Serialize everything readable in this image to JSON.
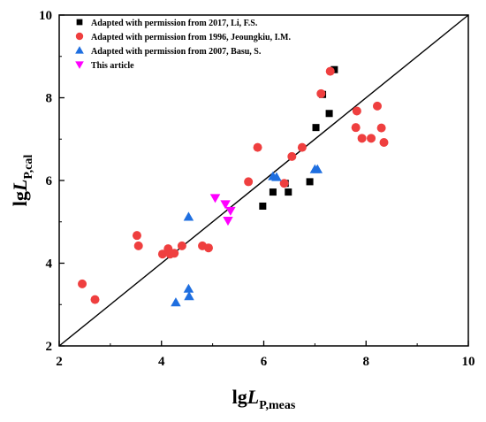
{
  "chart_data": {
    "type": "scatter",
    "title": "",
    "xlabel": {
      "prefix": "lg",
      "main": "L",
      "sub": "P,meas"
    },
    "ylabel": {
      "prefix": "lg",
      "main": "L",
      "sub": "P,cal"
    },
    "xlim": [
      2,
      10
    ],
    "ylim": [
      2,
      10
    ],
    "xticks": [
      "2",
      "4",
      "6",
      "8",
      "10"
    ],
    "yticks": [
      "2",
      "4",
      "6",
      "8",
      "10"
    ],
    "grid": false,
    "legend_position": "top-left",
    "reference_line": {
      "from": [
        2,
        2
      ],
      "to": [
        10,
        10
      ],
      "color": "#000000"
    },
    "series": [
      {
        "name": "Adapted with permission from  2017, Li, F.S.",
        "marker": "square",
        "color": "#000000",
        "points": [
          [
            5.98,
            5.38
          ],
          [
            6.18,
            5.72
          ],
          [
            6.42,
            5.93
          ],
          [
            6.48,
            5.72
          ],
          [
            6.9,
            5.97
          ],
          [
            7.02,
            7.28
          ],
          [
            7.15,
            8.08
          ],
          [
            7.28,
            7.62
          ],
          [
            7.38,
            8.68
          ]
        ]
      },
      {
        "name": "Adapted with permission from  1996, Jeoungkiu, I.M.",
        "marker": "circle",
        "color": "#ef3f3f",
        "points": [
          [
            2.45,
            3.5
          ],
          [
            2.7,
            3.12
          ],
          [
            3.52,
            4.67
          ],
          [
            3.55,
            4.42
          ],
          [
            4.02,
            4.22
          ],
          [
            4.13,
            4.35
          ],
          [
            4.17,
            4.22
          ],
          [
            4.25,
            4.24
          ],
          [
            4.4,
            4.42
          ],
          [
            4.8,
            4.42
          ],
          [
            4.92,
            4.37
          ],
          [
            5.7,
            5.97
          ],
          [
            5.88,
            6.8
          ],
          [
            6.4,
            5.93
          ],
          [
            6.55,
            6.58
          ],
          [
            6.75,
            6.8
          ],
          [
            7.12,
            8.1
          ],
          [
            7.3,
            8.64
          ],
          [
            7.8,
            7.28
          ],
          [
            7.82,
            7.68
          ],
          [
            7.92,
            7.02
          ],
          [
            8.1,
            7.02
          ],
          [
            8.22,
            7.8
          ],
          [
            8.3,
            7.27
          ],
          [
            8.35,
            6.92
          ]
        ]
      },
      {
        "name": "Adapted with permission from  2007, Basu, S.",
        "marker": "triangle-up",
        "color": "#1f6fe0",
        "points": [
          [
            4.28,
            3.05
          ],
          [
            4.53,
            3.38
          ],
          [
            4.54,
            3.2
          ],
          [
            4.53,
            5.12
          ],
          [
            6.18,
            6.1
          ],
          [
            6.25,
            6.08
          ],
          [
            7.0,
            6.27
          ],
          [
            7.05,
            6.27
          ]
        ]
      },
      {
        "name": "This article",
        "marker": "triangle-down",
        "color": "#ff00ff",
        "points": [
          [
            5.05,
            5.58
          ],
          [
            5.25,
            5.43
          ],
          [
            5.35,
            5.27
          ],
          [
            5.3,
            5.03
          ]
        ]
      }
    ]
  }
}
